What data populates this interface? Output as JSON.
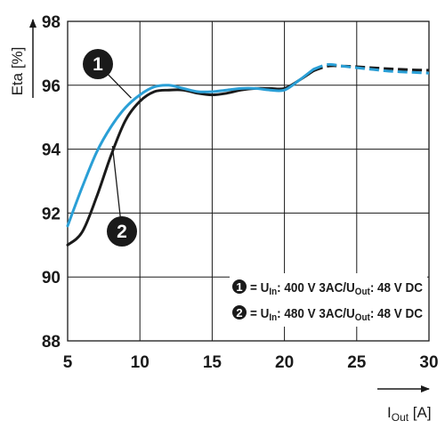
{
  "chart_data": {
    "type": "line",
    "ylabel": "Eta [%]",
    "xlabel": {
      "main": "I",
      "sub": "Out",
      "unit": " [A]"
    },
    "xlim": [
      5,
      30
    ],
    "ylim": [
      88,
      98
    ],
    "xticks": [
      5,
      10,
      15,
      20,
      25,
      30
    ],
    "yticks": [
      88,
      90,
      92,
      94,
      96,
      98
    ],
    "grid": true,
    "legend_position": "bottom-right",
    "series": [
      {
        "marker": "1",
        "color": "#2a9fd6",
        "legend": {
          "p1": "= U",
          "s1": "In",
          "p2": ": 400 V 3AC/U",
          "s2": "Out",
          "p3": ": 48 V DC"
        },
        "solid": [
          [
            5,
            91.6
          ],
          [
            6,
            92.8
          ],
          [
            7,
            93.9
          ],
          [
            8,
            94.7
          ],
          [
            9,
            95.3
          ],
          [
            10,
            95.7
          ],
          [
            11,
            95.95
          ],
          [
            12,
            96.0
          ],
          [
            13,
            95.9
          ],
          [
            14,
            95.8
          ],
          [
            15,
            95.8
          ],
          [
            16,
            95.85
          ],
          [
            17,
            95.9
          ],
          [
            18,
            95.9
          ],
          [
            19,
            95.85
          ],
          [
            20,
            95.85
          ],
          [
            21,
            96.15
          ],
          [
            22,
            96.5
          ]
        ],
        "dashed": [
          [
            22,
            96.5
          ],
          [
            23,
            96.65
          ],
          [
            24,
            96.6
          ],
          [
            25,
            96.55
          ],
          [
            26,
            96.5
          ],
          [
            27,
            96.45
          ],
          [
            28,
            96.42
          ],
          [
            29,
            96.4
          ],
          [
            30,
            96.38
          ]
        ]
      },
      {
        "marker": "2",
        "color": "#1a1a1a",
        "legend": {
          "p1": "= U",
          "s1": "In",
          "p2": ": 480 V 3AC/U",
          "s2": "Out",
          "p3": ": 48 V DC"
        },
        "solid": [
          [
            5,
            91.0
          ],
          [
            6,
            91.4
          ],
          [
            7,
            92.5
          ],
          [
            8,
            93.8
          ],
          [
            9,
            94.9
          ],
          [
            10,
            95.5
          ],
          [
            11,
            95.8
          ],
          [
            12,
            95.85
          ],
          [
            13,
            95.85
          ],
          [
            14,
            95.75
          ],
          [
            15,
            95.7
          ],
          [
            16,
            95.75
          ],
          [
            17,
            95.85
          ],
          [
            18,
            95.9
          ],
          [
            19,
            95.9
          ],
          [
            20,
            95.9
          ],
          [
            21,
            96.15
          ],
          [
            22,
            96.45
          ]
        ],
        "dashed": [
          [
            22,
            96.45
          ],
          [
            23,
            96.6
          ],
          [
            24,
            96.6
          ],
          [
            25,
            96.58
          ],
          [
            26,
            96.55
          ],
          [
            27,
            96.52
          ],
          [
            28,
            96.5
          ],
          [
            29,
            96.48
          ],
          [
            30,
            96.47
          ]
        ]
      }
    ],
    "callouts": [
      {
        "label": "1",
        "point": [
          9.4,
          95.6
        ]
      },
      {
        "label": "2",
        "point": [
          8.1,
          94.1
        ]
      }
    ]
  }
}
